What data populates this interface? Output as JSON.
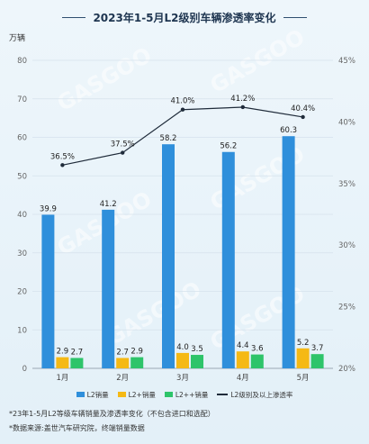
{
  "title": "2023年1-5月L2级别车辆渗透率变化",
  "unit_left": "万辆",
  "legend": {
    "l2": "L2销量",
    "l2plus": "L2+销量",
    "l2plusplus": "L2++销量",
    "rate": "L2级别及以上渗透率"
  },
  "notes": {
    "line1": "*23年1-5月L2等级车辆销量及渗透率变化（不包含进口和选配）",
    "line2": "*数据来源:盖世汽车研究院，终端销量数据"
  },
  "watermark": "GASGOO",
  "colors": {
    "l2": "#2f8fdb",
    "l2plus": "#f5b915",
    "l2plusplus": "#2ec46a",
    "rate": "#1f2b3a",
    "grid": "#d6e2ec",
    "axis_text": "#666666"
  },
  "chart_data": {
    "type": "bar",
    "categories": [
      "1月",
      "2月",
      "3月",
      "4月",
      "5月"
    ],
    "series": [
      {
        "key": "l2",
        "name": "L2销量",
        "values": [
          39.9,
          41.2,
          58.2,
          56.2,
          60.3
        ],
        "labels": [
          "39.9",
          "41.2",
          "58.2",
          "56.2",
          "60.3"
        ]
      },
      {
        "key": "l2plus",
        "name": "L2+销量",
        "values": [
          2.9,
          2.7,
          4.0,
          4.4,
          5.2
        ],
        "labels": [
          "2.9",
          "2.7",
          "4.0",
          "4.4",
          "5.2"
        ]
      },
      {
        "key": "l2plusplus",
        "name": "L2++销量",
        "values": [
          2.7,
          2.9,
          3.5,
          3.6,
          3.7
        ],
        "labels": [
          "2.7",
          "2.9",
          "3.5",
          "3.6",
          "3.7"
        ]
      }
    ],
    "line_series": {
      "name": "L2级别及以上渗透率",
      "values": [
        36.5,
        37.5,
        41.0,
        41.2,
        40.4
      ],
      "labels": [
        "36.5%",
        "37.5%",
        "41.0%",
        "41.2%",
        "40.4%"
      ]
    },
    "y_left": {
      "min": 0,
      "max": 80,
      "ticks": [
        "0",
        "10",
        "20",
        "30",
        "40",
        "50",
        "60",
        "70",
        "80"
      ]
    },
    "y_right": {
      "min": 20,
      "max": 45,
      "ticks": [
        "20%",
        "25%",
        "30%",
        "35%",
        "40%",
        "45%"
      ]
    },
    "grid": true,
    "legend_position": "bottom"
  }
}
